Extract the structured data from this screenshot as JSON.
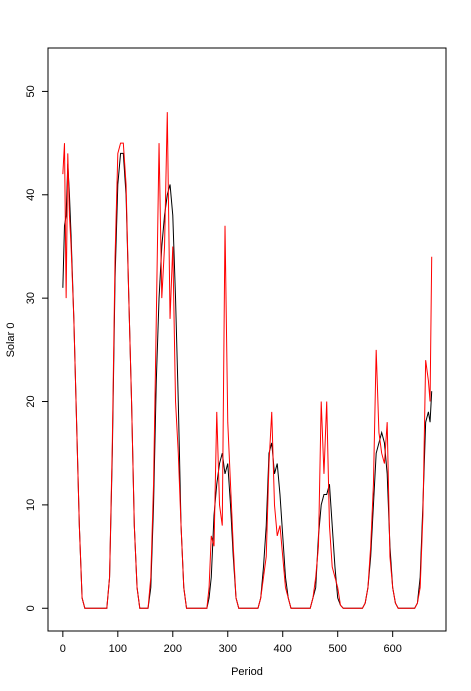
{
  "chart_data": {
    "type": "line",
    "x_label": "Period",
    "y_label": "Solar 0",
    "x": [
      0,
      3,
      6,
      9,
      12,
      15,
      20,
      25,
      30,
      35,
      40,
      80,
      85,
      90,
      95,
      100,
      105,
      110,
      115,
      120,
      125,
      130,
      135,
      140,
      155,
      160,
      165,
      170,
      175,
      180,
      185,
      190,
      195,
      200,
      205,
      210,
      215,
      220,
      225,
      262,
      266,
      270,
      275,
      280,
      285,
      290,
      295,
      300,
      305,
      310,
      315,
      320,
      355,
      360,
      365,
      370,
      375,
      380,
      385,
      390,
      395,
      400,
      405,
      410,
      415,
      450,
      455,
      460,
      465,
      470,
      475,
      480,
      485,
      490,
      495,
      500,
      505,
      510,
      545,
      550,
      555,
      560,
      565,
      570,
      575,
      580,
      585,
      590,
      595,
      600,
      605,
      610,
      640,
      645,
      650,
      655,
      660,
      665,
      668,
      671
    ],
    "series": [
      {
        "color": "#000000",
        "values": [
          31,
          37,
          38,
          43,
          40,
          36,
          28,
          18,
          8,
          1,
          0,
          0,
          3,
          15,
          32,
          41,
          44,
          44,
          40,
          30,
          20,
          8,
          2,
          0,
          0,
          2,
          10,
          22,
          30,
          35,
          38,
          40,
          41,
          38,
          30,
          20,
          8,
          2,
          0,
          0,
          1,
          3,
          9,
          12,
          14,
          15,
          13,
          14,
          10,
          5,
          1,
          0,
          0,
          1,
          4,
          8,
          15,
          16,
          13,
          14,
          11,
          7,
          3,
          1,
          0,
          0,
          1,
          2,
          7,
          10,
          11,
          11,
          12,
          8,
          4,
          1,
          0.3,
          0,
          0,
          0.5,
          2,
          5,
          10,
          15,
          16,
          17,
          16,
          13,
          6,
          2,
          0.5,
          0,
          0,
          0.5,
          3,
          10,
          18,
          19,
          18,
          21
        ]
      },
      {
        "color": "#ff0000",
        "values": [
          42,
          45,
          30,
          44,
          38,
          35,
          28,
          18,
          8,
          1,
          0,
          0,
          3,
          16,
          34,
          44,
          45,
          45,
          41,
          30,
          20,
          8,
          2,
          0,
          0,
          3,
          12,
          28,
          45,
          30,
          35,
          48,
          28,
          35,
          20,
          15,
          8,
          2,
          0,
          0,
          2,
          7,
          6,
          19,
          10,
          8,
          37,
          18,
          12,
          6,
          1,
          0,
          0,
          1,
          3,
          5,
          14,
          19,
          10,
          7,
          8,
          5,
          2,
          1,
          0,
          0,
          1,
          3,
          6,
          20,
          13,
          20,
          8,
          4,
          3,
          2,
          0.3,
          0,
          0,
          0.5,
          2,
          6,
          12,
          25,
          17,
          15,
          14,
          18,
          5,
          2,
          0.5,
          0,
          0,
          0.5,
          2,
          9,
          24,
          22,
          20,
          34
        ]
      }
    ],
    "xlim": [
      -27,
      697
    ],
    "ylim": [
      -2.2,
      54.2
    ],
    "xticks": [
      0,
      100,
      200,
      300,
      400,
      500,
      600
    ],
    "yticks": [
      0,
      10,
      20,
      30,
      40,
      50
    ]
  }
}
